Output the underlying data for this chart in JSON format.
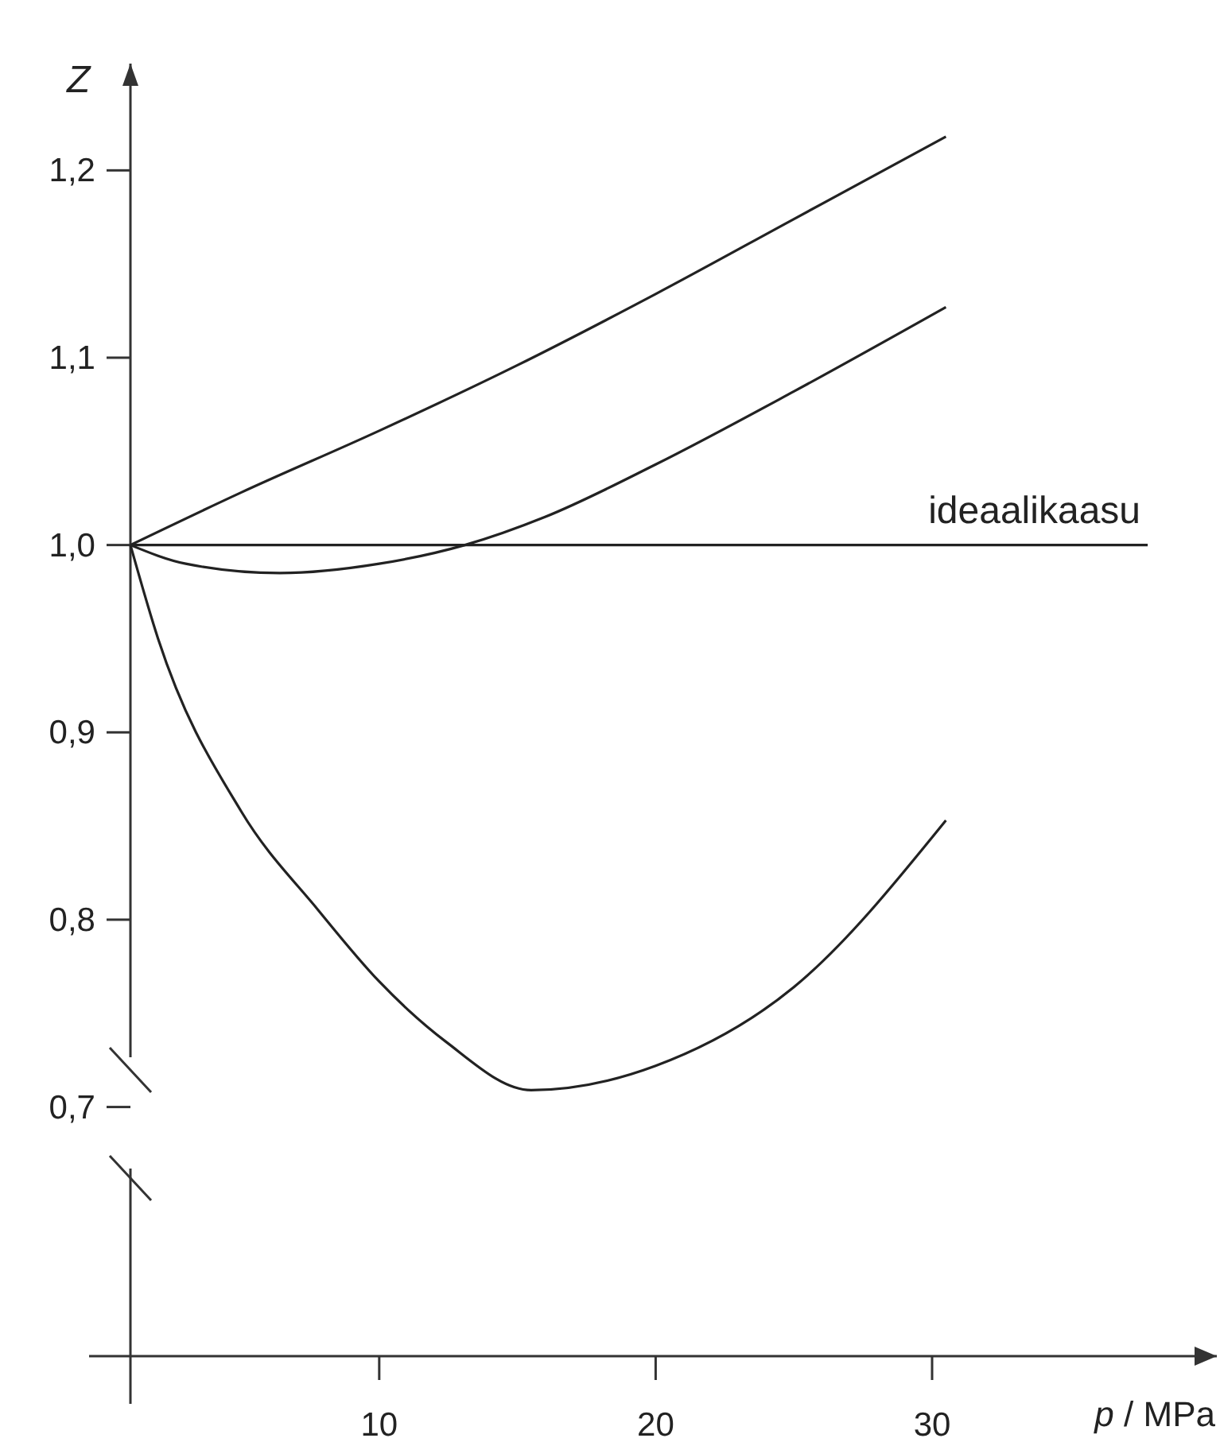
{
  "chart_data": {
    "type": "line",
    "xlabel": "p / MPa",
    "ylabel": "Z",
    "xlim": [
      1,
      40.3
    ],
    "ylim": [
      0.567,
      1.257
    ],
    "xticks": [
      10,
      20,
      30
    ],
    "yticks": [
      {
        "value": 0.7,
        "label": "0,7"
      },
      {
        "value": 0.8,
        "label": "0,8"
      },
      {
        "value": 0.9,
        "label": "0,9"
      },
      {
        "value": 1.0,
        "label": "1,0"
      },
      {
        "value": 1.1,
        "label": "1,1"
      },
      {
        "value": 1.2,
        "label": "1,2"
      }
    ],
    "grid": false,
    "marker": "none",
    "line_style": "solid",
    "series": [
      {
        "color": "#222222",
        "x": [
          1,
          5,
          10,
          15,
          20,
          25,
          30.5
        ],
        "values": [
          1.0,
          1.028,
          1.061,
          1.096,
          1.134,
          1.174,
          1.218
        ]
      },
      {
        "color": "#222222",
        "x": [
          1,
          3,
          6.4,
          10,
          13.1,
          16,
          20,
          25,
          30.5
        ],
        "values": [
          1.0,
          0.99,
          0.985,
          0.99,
          1.0,
          1.015,
          1.043,
          1.082,
          1.127
        ]
      },
      {
        "color": "#222222",
        "x": [
          1,
          2,
          5,
          7.8,
          10,
          12.4,
          15.5,
          20,
          25,
          30.5
        ],
        "values": [
          1.0,
          0.95,
          0.858,
          0.805,
          0.767,
          0.735,
          0.709,
          0.722,
          0.764,
          0.853
        ]
      },
      {
        "color": "#222222",
        "x": [
          1,
          37.8
        ],
        "values": [
          1.0,
          1.0
        ]
      }
    ],
    "annotations": [
      {
        "text": "ideaalikaasu",
        "x": 33.7,
        "y": 1.0
      }
    ]
  }
}
